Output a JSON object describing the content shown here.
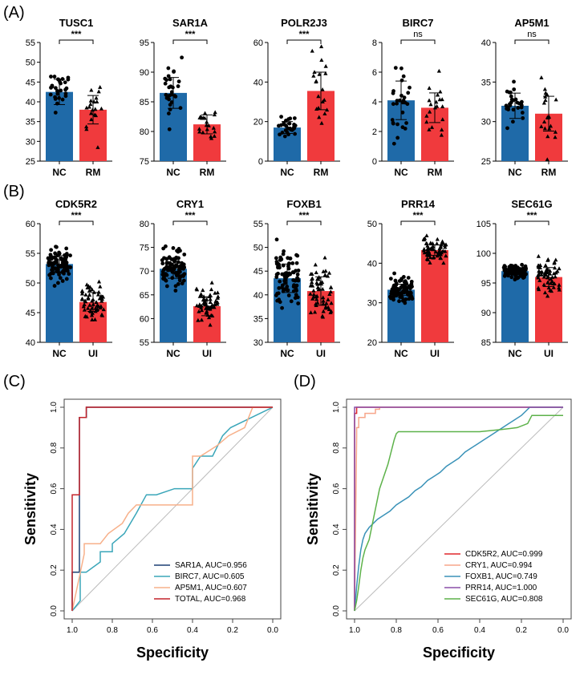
{
  "panels": {
    "A": "(A)",
    "B": "(B)",
    "C": "(C)",
    "D": "(D)"
  },
  "colors": {
    "nc": "#1f6aa8",
    "rm": "#f03a3d",
    "ui": "#f03a3d"
  },
  "chart_data": [
    {
      "type": "bar",
      "panel": "A",
      "title": "TUSC1",
      "categories": [
        "NC",
        "RM"
      ],
      "values": [
        42.5,
        38.0
      ],
      "sd": [
        3.2,
        3.6
      ],
      "n": [
        28,
        20
      ],
      "ylim": [
        25,
        55
      ],
      "yticks": [
        25,
        30,
        35,
        40,
        45,
        50,
        55
      ],
      "significance": "***"
    },
    {
      "type": "bar",
      "panel": "A",
      "title": "SAR1A",
      "categories": [
        "NC",
        "RM"
      ],
      "values": [
        86.5,
        81.2
      ],
      "sd": [
        2.6,
        1.6
      ],
      "n": [
        28,
        20
      ],
      "ylim": [
        75,
        95
      ],
      "yticks": [
        75,
        80,
        85,
        90,
        95
      ],
      "significance": "***"
    },
    {
      "type": "bar",
      "panel": "A",
      "title": "POLR2J3",
      "categories": [
        "NC",
        "RM"
      ],
      "values": [
        17.0,
        35.5
      ],
      "sd": [
        3.0,
        9.5
      ],
      "n": [
        28,
        20
      ],
      "ylim": [
        0,
        60
      ],
      "yticks": [
        0,
        20,
        40,
        60
      ],
      "significance": "***"
    },
    {
      "type": "bar",
      "panel": "A",
      "title": "BIRC7",
      "categories": [
        "NC",
        "RM"
      ],
      "values": [
        4.1,
        3.6
      ],
      "sd": [
        1.3,
        1.0
      ],
      "n": [
        28,
        20
      ],
      "ylim": [
        0,
        8
      ],
      "yticks": [
        0,
        2,
        4,
        6,
        8
      ],
      "significance": "ns"
    },
    {
      "type": "bar",
      "panel": "A",
      "title": "AP5M1",
      "categories": [
        "NC",
        "RM"
      ],
      "values": [
        32.0,
        31.0
      ],
      "sd": [
        1.6,
        2.2
      ],
      "n": [
        28,
        20
      ],
      "ylim": [
        25,
        40
      ],
      "yticks": [
        25,
        30,
        35,
        40
      ],
      "significance": "ns"
    },
    {
      "type": "bar",
      "panel": "B",
      "title": "CDK5R2",
      "categories": [
        "NC",
        "UI"
      ],
      "values": [
        53.2,
        46.8
      ],
      "sd": [
        1.4,
        1.6
      ],
      "n": [
        90,
        60
      ],
      "ylim": [
        40,
        60
      ],
      "yticks": [
        40,
        45,
        50,
        55,
        60
      ],
      "significance": "***"
    },
    {
      "type": "bar",
      "panel": "B",
      "title": "CRY1",
      "categories": [
        "NC",
        "UI"
      ],
      "values": [
        70.5,
        62.6
      ],
      "sd": [
        2.0,
        2.0
      ],
      "n": [
        90,
        60
      ],
      "ylim": [
        55,
        80
      ],
      "yticks": [
        55,
        60,
        65,
        70,
        75,
        80
      ],
      "significance": "***"
    },
    {
      "type": "bar",
      "panel": "B",
      "title": "FOXB1",
      "categories": [
        "NC",
        "UI"
      ],
      "values": [
        43.5,
        40.8
      ],
      "sd": [
        3.0,
        3.0
      ],
      "n": [
        90,
        60
      ],
      "ylim": [
        30,
        55
      ],
      "yticks": [
        30,
        35,
        40,
        45,
        50,
        55
      ],
      "significance": "***"
    },
    {
      "type": "bar",
      "panel": "B",
      "title": "PRR14",
      "categories": [
        "NC",
        "UI"
      ],
      "values": [
        33.3,
        43.3
      ],
      "sd": [
        1.4,
        1.3
      ],
      "n": [
        90,
        60
      ],
      "ylim": [
        20,
        50
      ],
      "yticks": [
        20,
        30,
        40,
        50
      ],
      "significance": "***"
    },
    {
      "type": "bar",
      "panel": "B",
      "title": "SEC61G",
      "categories": [
        "NC",
        "UI"
      ],
      "values": [
        97.0,
        96.0
      ],
      "sd": [
        0.6,
        1.6
      ],
      "n": [
        90,
        60
      ],
      "ylim": [
        85,
        105
      ],
      "yticks": [
        85,
        90,
        95,
        100,
        105
      ],
      "significance": "***"
    },
    {
      "type": "line",
      "panel": "C",
      "xlabel": "Specificity",
      "ylabel": "Sensitivity",
      "xlim": [
        1.0,
        0.0
      ],
      "ylim": [
        0.0,
        1.0
      ],
      "xticks": [
        "1.0",
        "0.8",
        "0.6",
        "0.4",
        "0.2",
        "0.0"
      ],
      "yticks": [
        "0.0",
        "0.2",
        "0.4",
        "0.6",
        "0.8",
        "1.0"
      ],
      "legend_position": "bottom-right",
      "series": [
        {
          "name": "SAR1A, AUC=0.956",
          "color": "#1c3f73",
          "x": [
            1.0,
            1.0,
            0.964,
            0.964,
            0.964,
            0.929,
            0.929,
            0.0
          ],
          "y": [
            0.0,
            0.19,
            0.19,
            0.57,
            0.95,
            0.95,
            1.0,
            1.0
          ]
        },
        {
          "name": "BIRC7, AUC=0.605",
          "color": "#3aa6b9",
          "x": [
            1.0,
            0.96,
            0.96,
            0.93,
            0.86,
            0.86,
            0.8,
            0.8,
            0.74,
            0.68,
            0.63,
            0.58,
            0.49,
            0.4,
            0.4,
            0.36,
            0.3,
            0.25,
            0.21,
            0.0
          ],
          "y": [
            0.0,
            0.05,
            0.19,
            0.19,
            0.24,
            0.29,
            0.29,
            0.33,
            0.38,
            0.48,
            0.57,
            0.57,
            0.6,
            0.6,
            0.7,
            0.76,
            0.76,
            0.86,
            0.9,
            1.0
          ]
        },
        {
          "name": "AP5M1, AUC=0.607",
          "color": "#f7b08a",
          "x": [
            1.0,
            0.97,
            0.94,
            0.94,
            0.86,
            0.82,
            0.75,
            0.72,
            0.68,
            0.6,
            0.4,
            0.4,
            0.36,
            0.28,
            0.22,
            0.14,
            0.12,
            0.1,
            0.0
          ],
          "y": [
            0.0,
            0.14,
            0.28,
            0.33,
            0.33,
            0.38,
            0.43,
            0.48,
            0.52,
            0.52,
            0.52,
            0.76,
            0.76,
            0.81,
            0.86,
            0.9,
            0.95,
            1.0,
            1.0
          ]
        },
        {
          "name": "TOTAL, AUC=0.968",
          "color": "#c4242b",
          "x": [
            1.0,
            1.0,
            0.964,
            0.964,
            0.93,
            0.93,
            0.93,
            0.0
          ],
          "y": [
            0.0,
            0.57,
            0.57,
            0.95,
            0.95,
            1.0,
            1.0,
            1.0
          ]
        }
      ]
    },
    {
      "type": "line",
      "panel": "D",
      "xlabel": "Specificity",
      "ylabel": "Sensitivity",
      "xlim": [
        1.0,
        0.0
      ],
      "ylim": [
        0.0,
        1.0
      ],
      "xticks": [
        "1.0",
        "0.8",
        "0.6",
        "0.4",
        "0.2",
        "0.0"
      ],
      "yticks": [
        "0.0",
        "0.2",
        "0.4",
        "0.6",
        "0.8",
        "1.0"
      ],
      "legend_position": "bottom-right",
      "series": [
        {
          "name": "CDK5R2, AUC=0.999",
          "color": "#e0262c",
          "x": [
            1.0,
            1.0,
            0.99,
            0.99,
            0.0
          ],
          "y": [
            0.0,
            0.97,
            0.97,
            1.0,
            1.0
          ]
        },
        {
          "name": "CRY1, AUC=0.994",
          "color": "#f7a58a",
          "x": [
            1.0,
            0.99,
            0.99,
            0.98,
            0.98,
            0.95,
            0.95,
            0.9,
            0.9,
            0.88,
            0.88,
            0.0
          ],
          "y": [
            0.0,
            0.86,
            0.9,
            0.9,
            0.95,
            0.95,
            0.97,
            0.97,
            0.99,
            0.99,
            1.0,
            1.0
          ]
        },
        {
          "name": "FOXB1, AUC=0.749",
          "color": "#3a92b8",
          "x": [
            1.0,
            0.99,
            0.98,
            0.97,
            0.96,
            0.95,
            0.93,
            0.91,
            0.89,
            0.86,
            0.83,
            0.8,
            0.77,
            0.74,
            0.71,
            0.68,
            0.65,
            0.62,
            0.59,
            0.56,
            0.53,
            0.5,
            0.47,
            0.44,
            0.41,
            0.38,
            0.35,
            0.32,
            0.29,
            0.26,
            0.23,
            0.2,
            0.18,
            0.16,
            0.0
          ],
          "y": [
            0.0,
            0.12,
            0.22,
            0.3,
            0.35,
            0.38,
            0.41,
            0.43,
            0.45,
            0.47,
            0.49,
            0.52,
            0.54,
            0.56,
            0.59,
            0.61,
            0.64,
            0.66,
            0.68,
            0.71,
            0.73,
            0.75,
            0.78,
            0.8,
            0.82,
            0.84,
            0.86,
            0.88,
            0.9,
            0.92,
            0.94,
            0.96,
            0.98,
            1.0,
            1.0
          ]
        },
        {
          "name": "PRR14, AUC=1.000",
          "color": "#8a4fa8",
          "x": [
            1.0,
            1.0,
            0.0
          ],
          "y": [
            0.0,
            1.0,
            1.0
          ]
        },
        {
          "name": "SEC61G, AUC=0.808",
          "color": "#5db24a",
          "x": [
            1.0,
            0.99,
            0.98,
            0.97,
            0.96,
            0.95,
            0.93,
            0.92,
            0.91,
            0.9,
            0.89,
            0.88,
            0.87,
            0.86,
            0.85,
            0.84,
            0.83,
            0.82,
            0.81,
            0.8,
            0.79,
            0.7,
            0.6,
            0.5,
            0.4,
            0.3,
            0.22,
            0.17,
            0.15,
            0.0
          ],
          "y": [
            0.0,
            0.05,
            0.12,
            0.2,
            0.26,
            0.3,
            0.35,
            0.4,
            0.45,
            0.5,
            0.55,
            0.6,
            0.63,
            0.66,
            0.69,
            0.72,
            0.76,
            0.8,
            0.84,
            0.87,
            0.88,
            0.88,
            0.88,
            0.88,
            0.88,
            0.89,
            0.9,
            0.92,
            0.96,
            0.96
          ]
        }
      ]
    }
  ]
}
